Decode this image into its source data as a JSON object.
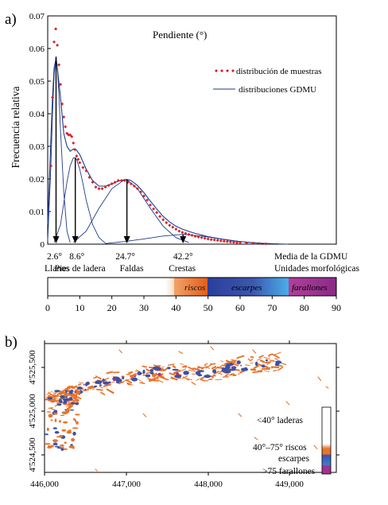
{
  "panel_a": {
    "letter": "a)",
    "title": "Pendiente (°)",
    "legend": {
      "samples": "distribución de muestras",
      "gdmu": "distribuciones GDMU"
    },
    "ylabel": "Frecuencia relativa",
    "unit_labels": {
      "mean": "Media de la GDMU",
      "units": "Unidades morfológicas"
    },
    "means": [
      {
        "value": "2.6°",
        "x": 2.6,
        "label": "Llanos"
      },
      {
        "value": "8.6°",
        "x": 8.6,
        "label": "Pies de ladera"
      },
      {
        "value": "24.7°",
        "x": 24.7,
        "label": "Faldas"
      },
      {
        "value": "42.2°",
        "x": 42.2,
        "label": "Crestas"
      }
    ],
    "color_scale": {
      "ticks": [
        "0",
        "10",
        "20",
        "30",
        "40",
        "50",
        "60",
        "70",
        "80",
        "90"
      ],
      "segments": [
        {
          "label": "riscos",
          "from": 40,
          "to": 50,
          "color": "#e8742a"
        },
        {
          "label": "escarpes",
          "from": 50,
          "to": 75,
          "color": "#3a52a8"
        },
        {
          "label": "farallones",
          "from": 75,
          "to": 90,
          "color": "#a0338f"
        }
      ]
    }
  },
  "chart_data": [
    {
      "type": "line",
      "title": "Pendiente (°)",
      "ylabel": "Frecuencia relativa",
      "xlim": [
        0,
        90
      ],
      "ylim": [
        0,
        0.07
      ],
      "yticks": [
        "0",
        "0.01",
        "0.02",
        "0.03",
        "0.04",
        "0.05",
        "0.06",
        "0.07"
      ],
      "series": [
        {
          "name": "distribución de muestras",
          "style": "markers",
          "color": "#d1242a",
          "x": [
            1,
            1.5,
            2,
            2.5,
            3,
            3.5,
            4,
            4.5,
            5,
            5.5,
            6,
            6.5,
            7,
            7.5,
            8,
            8.5,
            9,
            9.5,
            10,
            11,
            12,
            13,
            14,
            15,
            16,
            17,
            18,
            19,
            20,
            21,
            22,
            23,
            24,
            25,
            26,
            27,
            28,
            29,
            30,
            31,
            32,
            33,
            34,
            35,
            36,
            37,
            38,
            39,
            40,
            41,
            42,
            43,
            44,
            45,
            46,
            47,
            48,
            49,
            50,
            51,
            52,
            53,
            54,
            55,
            56,
            57,
            58,
            59,
            60,
            62,
            64,
            66,
            68
          ],
          "y": [
            0.024,
            0.045,
            0.062,
            0.066,
            0.061,
            0.055,
            0.049,
            0.043,
            0.039,
            0.036,
            0.034,
            0.0335,
            0.0335,
            0.033,
            0.031,
            0.029,
            0.027,
            0.026,
            0.025,
            0.0235,
            0.0225,
            0.0205,
            0.019,
            0.0175,
            0.017,
            0.017,
            0.0175,
            0.018,
            0.0185,
            0.019,
            0.0195,
            0.0195,
            0.0195,
            0.019,
            0.0185,
            0.0178,
            0.017,
            0.016,
            0.0148,
            0.0135,
            0.012,
            0.0108,
            0.0097,
            0.0085,
            0.0075,
            0.0066,
            0.0058,
            0.0052,
            0.0046,
            0.004,
            0.0036,
            0.0033,
            0.003,
            0.0027,
            0.0024,
            0.0022,
            0.002,
            0.0018,
            0.0016,
            0.0014,
            0.0013,
            0.0012,
            0.001,
            0.0009,
            0.0008,
            0.0007,
            0.0006,
            0.0005,
            0.0005,
            0.0004,
            0.0003,
            0.0002,
            0.0001
          ]
        },
        {
          "name": "distribuciones GDMU",
          "style": "line",
          "color": "#1f3a8a",
          "x": [
            0,
            1,
            1.5,
            2,
            2.6,
            3,
            4,
            5,
            6,
            7,
            8,
            8.6,
            9,
            10,
            12,
            14,
            16,
            18,
            20,
            22,
            24,
            25,
            26,
            28,
            30,
            32,
            34,
            36,
            38,
            40,
            42,
            44,
            46,
            48,
            50,
            54,
            58,
            62,
            66,
            70,
            75
          ],
          "y": [
            0.006,
            0.032,
            0.045,
            0.054,
            0.057,
            0.054,
            0.045,
            0.034,
            0.03,
            0.0285,
            0.0292,
            0.0292,
            0.0288,
            0.0275,
            0.023,
            0.0195,
            0.0178,
            0.0178,
            0.0185,
            0.0193,
            0.0198,
            0.0198,
            0.0195,
            0.018,
            0.0158,
            0.0132,
            0.0108,
            0.0085,
            0.0068,
            0.0055,
            0.0046,
            0.0039,
            0.0033,
            0.0028,
            0.0023,
            0.0016,
            0.001,
            0.0006,
            0.0003,
            0.0001,
            0
          ]
        },
        {
          "name": "Llanos",
          "style": "component",
          "color": "#1f3a8a",
          "x": [
            0,
            1,
            1.5,
            2,
            2.6,
            3,
            3.5,
            4,
            5,
            6,
            7
          ],
          "y": [
            0.001,
            0.024,
            0.04,
            0.052,
            0.0575,
            0.054,
            0.046,
            0.035,
            0.016,
            0.004,
            0.0005
          ]
        },
        {
          "name": "Pies de ladera",
          "style": "component",
          "color": "#1f3a8a",
          "x": [
            2,
            4,
            6,
            7,
            8,
            8.6,
            9,
            10,
            11,
            12,
            14,
            16,
            18
          ],
          "y": [
            0.0005,
            0.006,
            0.019,
            0.024,
            0.0265,
            0.0265,
            0.026,
            0.023,
            0.0185,
            0.0135,
            0.006,
            0.002,
            0.0003
          ]
        },
        {
          "name": "Faldas",
          "style": "component",
          "color": "#1f3a8a",
          "x": [
            8,
            12,
            16,
            20,
            24,
            24.7,
            28,
            32,
            36,
            40,
            44
          ],
          "y": [
            0.0005,
            0.004,
            0.011,
            0.017,
            0.0198,
            0.0198,
            0.017,
            0.011,
            0.0055,
            0.002,
            0.0005
          ]
        },
        {
          "name": "Crestas",
          "style": "component",
          "color": "#1f3a8a",
          "x": [
            18,
            24,
            30,
            36,
            42.2,
            48,
            54,
            60,
            66,
            72
          ],
          "y": [
            0.0002,
            0.0008,
            0.0016,
            0.0025,
            0.003,
            0.0025,
            0.0016,
            0.0008,
            0.0003,
            0.0001
          ]
        }
      ]
    },
    {
      "type": "heatmap",
      "title": "",
      "x_ticks": [
        "446,000",
        "447,000",
        "448,000",
        "449,000"
      ],
      "y_ticks": [
        "4'524,500",
        "4'525,000",
        "4'525,500"
      ],
      "legend": {
        "low": "<40° laderas",
        "mid1": "40°–75° riscos",
        "mid2": "escarpes",
        "high": ">75 farallones"
      },
      "colors": {
        "laderas": "#ffffff",
        "riscos": "#e8742a",
        "escarpes": "#3a52a8",
        "farallones": "#a0338f"
      }
    }
  ]
}
